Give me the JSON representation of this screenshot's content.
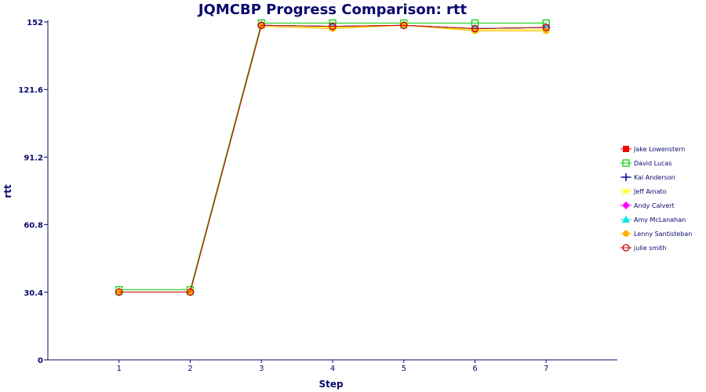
{
  "chart_data": {
    "type": "line",
    "title": "JQMCBP Progress Comparison: rtt",
    "xlabel": "Step",
    "ylabel": "rtt",
    "x": [
      1,
      2,
      3,
      4,
      5,
      6,
      7
    ],
    "xlim": [
      0,
      8
    ],
    "ylim": [
      0,
      152
    ],
    "yticks": [
      0,
      30.4,
      60.8,
      91.2,
      121.6,
      152
    ],
    "yticks_labels": [
      "0",
      "30.4",
      "60.8",
      "91.2",
      "121.6",
      "152"
    ],
    "grid": false,
    "legend_position": "right",
    "series": [
      {
        "name": "Jake Lowenstern",
        "color": "#ff0000",
        "marker": "square",
        "values": [
          30.5,
          30.5,
          150.5,
          150.0,
          150.5,
          149.0,
          149.5
        ]
      },
      {
        "name": "David Lucas",
        "color": "#00cc00",
        "marker": "square-open",
        "values": [
          31.5,
          31.5,
          151.5,
          151.5,
          151.5,
          151.5,
          151.5
        ]
      },
      {
        "name": "Kai Anderson",
        "color": "#00008b",
        "marker": "plus",
        "values": [
          30.5,
          30.5,
          150.5,
          150.0,
          150.5,
          149.0,
          149.5
        ]
      },
      {
        "name": "Jeff Amato",
        "color": "#ffff00",
        "marker": "x",
        "values": [
          30.5,
          30.5,
          150.5,
          149.5,
          150.5,
          148.5,
          148.5
        ]
      },
      {
        "name": "Andy Calvert",
        "color": "#ff00ff",
        "marker": "diamond",
        "values": [
          30.5,
          30.5,
          150.5,
          150.0,
          150.5,
          149.0,
          149.5
        ]
      },
      {
        "name": "Amy McLanahan",
        "color": "#00e5e5",
        "marker": "triangle",
        "values": [
          30.5,
          30.5,
          150.5,
          150.0,
          150.5,
          149.0,
          149.5
        ]
      },
      {
        "name": "Lenny Santisteban",
        "color": "#ffb300",
        "marker": "circle",
        "values": [
          30.5,
          30.5,
          150.0,
          149.0,
          150.5,
          148.0,
          148.0
        ]
      },
      {
        "name": "julie smith",
        "color": "#cc0000",
        "marker": "circle-open",
        "values": [
          30.5,
          30.5,
          150.5,
          150.0,
          150.5,
          149.0,
          149.5
        ]
      }
    ]
  }
}
